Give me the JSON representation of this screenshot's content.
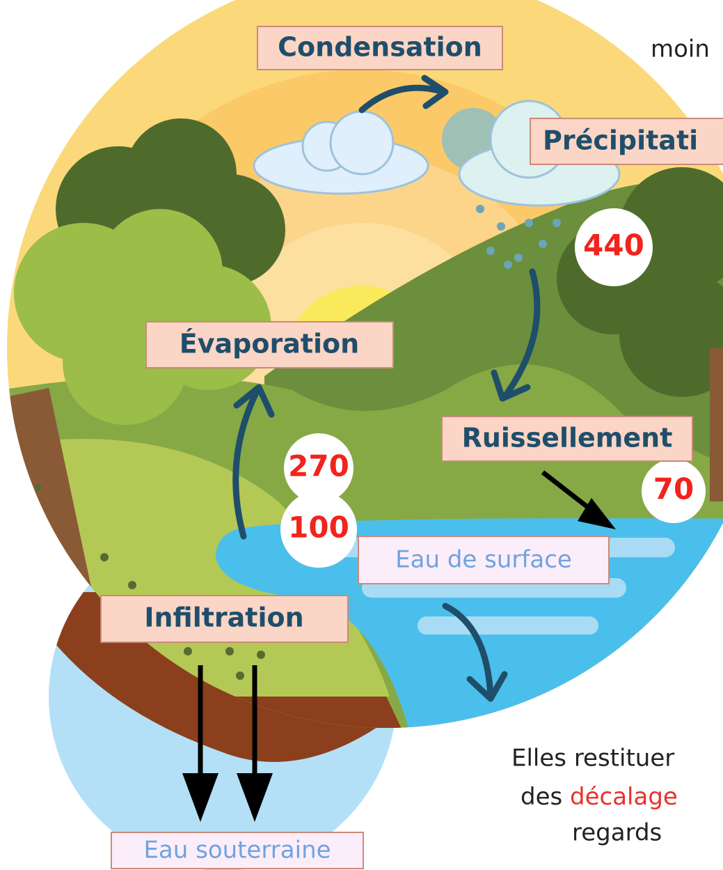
{
  "labels": {
    "condensation": "Condensation",
    "precipitation": "Précipitati",
    "evaporation": "Évaporation",
    "runoff": "Ruissellement",
    "infiltration": "Infiltration",
    "surface_water": "Eau de surface",
    "groundwater": "Eau souterraine"
  },
  "flows": {
    "precipitation": 440,
    "evaporation": 270,
    "runoff": 70,
    "infiltration": 100
  },
  "side_text": {
    "top": "moin",
    "line1": "Elles restituer",
    "line2_start": "des ",
    "line2_highlight": "décalage",
    "line3": "regards"
  }
}
